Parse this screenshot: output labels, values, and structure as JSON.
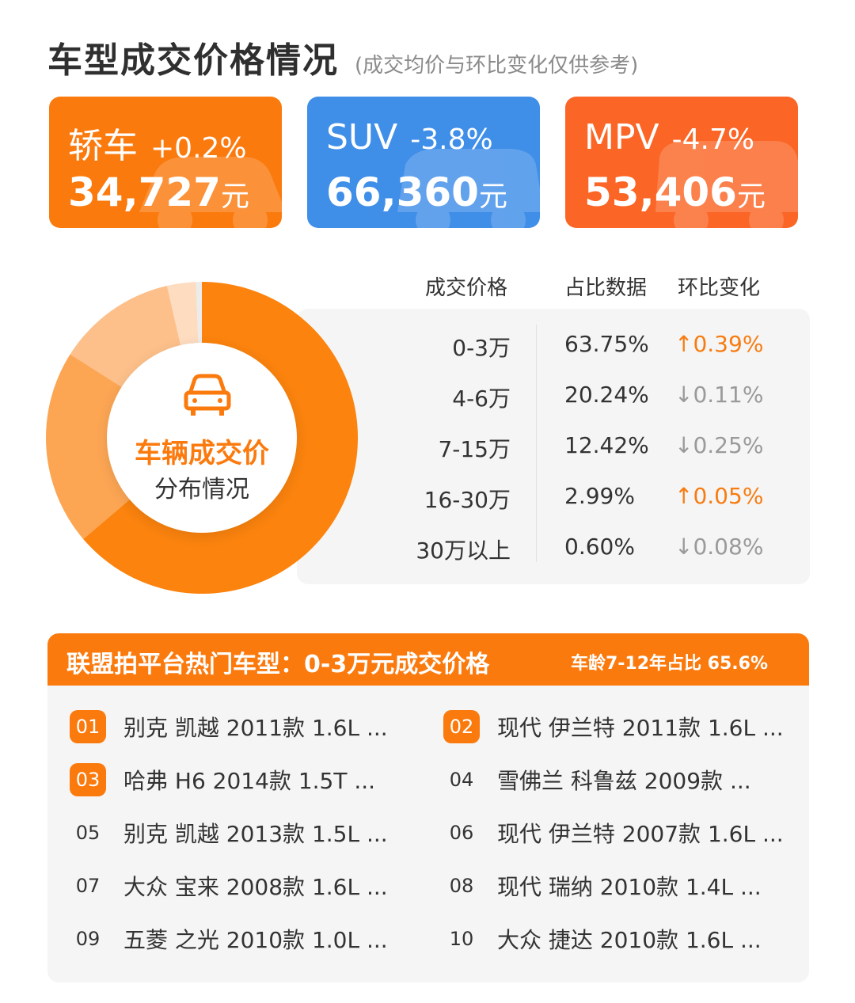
{
  "header": {
    "title": "车型成交价格情况",
    "subtitle": "(成交均价与环比变化仅供参考)"
  },
  "cards": [
    {
      "name": "轿车",
      "change": "+0.2%",
      "price": "34,727",
      "unit": "元",
      "color": "#fb7a0e"
    },
    {
      "name": "SUV",
      "change": "-3.8%",
      "price": "66,360",
      "unit": "元",
      "color": "#3f8ee8"
    },
    {
      "name": "MPV",
      "change": "-4.7%",
      "price": "53,406",
      "unit": "元",
      "color": "#fb6525"
    }
  ],
  "donut": {
    "center_line1": "车辆成交价",
    "center_line2": "分布情况",
    "icon": "car-icon"
  },
  "table": {
    "headers": [
      "成交价格",
      "占比数据",
      "环比变化"
    ]
  },
  "chart_data": {
    "type": "pie",
    "categories": [
      "0-3万",
      "4-6万",
      "7-15万",
      "16-30万",
      "30万以上"
    ],
    "values": [
      63.75,
      20.24,
      12.42,
      2.99,
      0.6
    ],
    "pct_labels": [
      "63.75%",
      "20.24%",
      "12.42%",
      "2.99%",
      "0.60%"
    ],
    "changes": [
      "0.39%",
      "0.11%",
      "0.25%",
      "0.05%",
      "0.08%"
    ],
    "change_direction": [
      "up",
      "down",
      "down",
      "up",
      "down"
    ],
    "colors": [
      "#fb830e",
      "#fca654",
      "#fdc08a",
      "#fddcc0",
      "#ececec"
    ]
  },
  "hot": {
    "title": "联盟拍平台热门车型：0-3万元成交价格",
    "note": "车龄7-12年占比 65.6%",
    "items": [
      {
        "rank": "01",
        "name": "别克 凯越 2011款 1.6L ..."
      },
      {
        "rank": "02",
        "name": "现代 伊兰特 2011款 1.6L ..."
      },
      {
        "rank": "03",
        "name": "哈弗 H6 2014款 1.5T ..."
      },
      {
        "rank": "04",
        "name": "雪佛兰 科鲁兹 2009款 ..."
      },
      {
        "rank": "05",
        "name": "别克 凯越 2013款 1.5L  ..."
      },
      {
        "rank": "06",
        "name": "现代 伊兰特 2007款 1.6L ..."
      },
      {
        "rank": "07",
        "name": "大众 宝来 2008款 1.6L  ..."
      },
      {
        "rank": "08",
        "name": "现代 瑞纳 2010款 1.4L ..."
      },
      {
        "rank": "09",
        "name": "五菱 之光 2010款 1.0L ..."
      },
      {
        "rank": "10",
        "name": "大众 捷达 2010款 1.6L  ..."
      }
    ]
  }
}
